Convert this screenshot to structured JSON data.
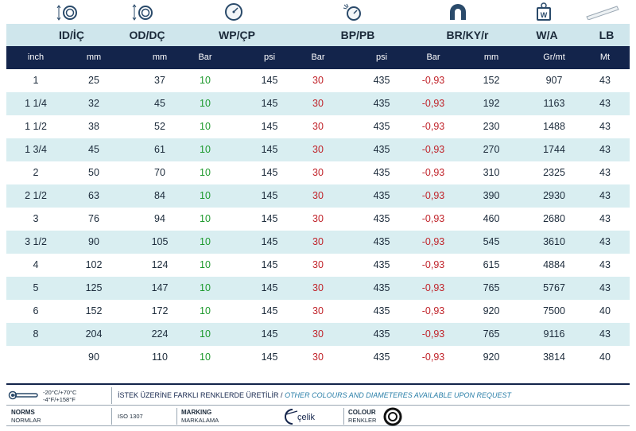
{
  "header": {
    "columns": [
      "ID/İÇ",
      "OD/DÇ",
      "WP/ÇP",
      "BP/PB",
      "BR/KY/r",
      "W/A",
      "LB"
    ]
  },
  "units": [
    "inch",
    "mm",
    "mm",
    "Bar",
    "psi",
    "Bar",
    "psi",
    "Bar",
    "mm",
    "Gr/mt",
    "Mt"
  ],
  "rows": [
    [
      "1",
      "25",
      "37",
      "10",
      "145",
      "30",
      "435",
      "-0,93",
      "152",
      "907",
      "43"
    ],
    [
      "1 1/4",
      "32",
      "45",
      "10",
      "145",
      "30",
      "435",
      "-0,93",
      "192",
      "1163",
      "43"
    ],
    [
      "1 1/2",
      "38",
      "52",
      "10",
      "145",
      "30",
      "435",
      "-0,93",
      "230",
      "1488",
      "43"
    ],
    [
      "1 3/4",
      "45",
      "61",
      "10",
      "145",
      "30",
      "435",
      "-0,93",
      "270",
      "1744",
      "43"
    ],
    [
      "2",
      "50",
      "70",
      "10",
      "145",
      "30",
      "435",
      "-0,93",
      "310",
      "2325",
      "43"
    ],
    [
      "2 1/2",
      "63",
      "84",
      "10",
      "145",
      "30",
      "435",
      "-0,93",
      "390",
      "2930",
      "43"
    ],
    [
      "3",
      "76",
      "94",
      "10",
      "145",
      "30",
      "435",
      "-0,93",
      "460",
      "2680",
      "43"
    ],
    [
      "3 1/2",
      "90",
      "105",
      "10",
      "145",
      "30",
      "435",
      "-0,93",
      "545",
      "3610",
      "43"
    ],
    [
      "4",
      "102",
      "124",
      "10",
      "145",
      "30",
      "435",
      "-0,93",
      "615",
      "4884",
      "43"
    ],
    [
      "5",
      "125",
      "147",
      "10",
      "145",
      "30",
      "435",
      "-0,93",
      "765",
      "5767",
      "43"
    ],
    [
      "6",
      "152",
      "172",
      "10",
      "145",
      "30",
      "435",
      "-0,93",
      "920",
      "7500",
      "40"
    ],
    [
      "8",
      "204",
      "224",
      "10",
      "145",
      "30",
      "435",
      "-0,93",
      "765",
      "9116",
      "43"
    ],
    [
      "",
      "90",
      "110",
      "10",
      "145",
      "30",
      "435",
      "-0,93",
      "920",
      "3814",
      "40"
    ]
  ],
  "colors": {
    "header_bg": "#cfe6ec",
    "unit_bg": "#13244b",
    "alt_row": "#d9eef1",
    "wp": "#1e9a2e",
    "bp": "#c0232a",
    "br": "#c0232a"
  },
  "icons": [
    "inner-diameter-icon",
    "outer-diameter-icon",
    "pressure-gauge-icon",
    "burst-pressure-icon",
    "bend-radius-icon",
    "weight-icon",
    "length-icon",
    "thermometer-icon",
    "celik-logo",
    "colour-ring-icon"
  ],
  "footer": {
    "temp_c": "-20°C/+70°C",
    "temp_f": "-4°F/+158°F",
    "notice_tr": "İSTEK ÜZERİNE FARKLI RENKLERDE ÜRETİLİR",
    "notice_sep": " / ",
    "notice_en": "OTHER COLOURS AND DIAMETERES AVAILABLE UPON REQUEST",
    "norms_label": "NORMS",
    "norms_label_tr": "NORMLAR",
    "norms_value": "ISO 1307",
    "marking_label": "MARKING",
    "marking_label_tr": "MARKALAMA",
    "brand": "çelik",
    "colour_label": "COLOUR",
    "colour_label_tr": "RENKLER"
  }
}
